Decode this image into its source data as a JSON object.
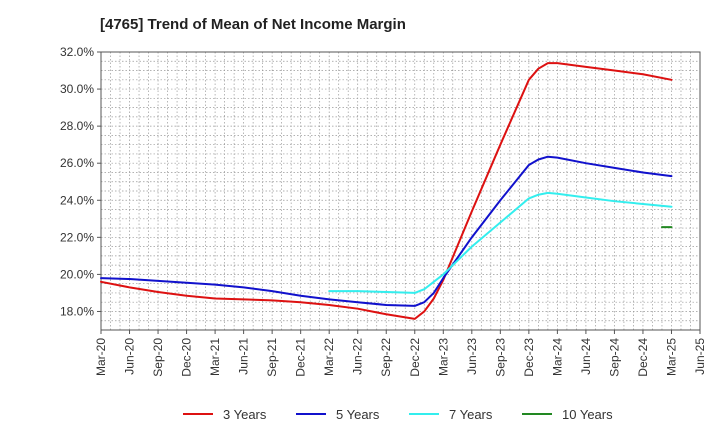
{
  "chart_data": {
    "type": "line",
    "title": "[4765]  Trend of Mean of Net Income Margin",
    "xlabel": "",
    "ylabel": "",
    "x_ticks": [
      "Mar-20",
      "Jun-20",
      "Sep-20",
      "Dec-20",
      "Mar-21",
      "Jun-21",
      "Sep-21",
      "Dec-21",
      "Mar-22",
      "Jun-22",
      "Sep-22",
      "Dec-22",
      "Mar-23",
      "Jun-23",
      "Sep-23",
      "Dec-23",
      "Mar-24",
      "Jun-24",
      "Sep-24",
      "Dec-24",
      "Mar-25",
      "Jun-25"
    ],
    "y_ticks": [
      "18.0%",
      "20.0%",
      "22.0%",
      "24.0%",
      "26.0%",
      "28.0%",
      "30.0%",
      "32.0%"
    ],
    "ylim": [
      17.0,
      32.0
    ],
    "y_unit": "%",
    "grid": true,
    "legend_position": "bottom",
    "series": [
      {
        "name": "3 Years",
        "color": "#dd1111",
        "points": [
          [
            "Mar-20",
            19.6
          ],
          [
            "Jun-20",
            19.3
          ],
          [
            "Sep-20",
            19.05
          ],
          [
            "Dec-20",
            18.85
          ],
          [
            "Mar-21",
            18.7
          ],
          [
            "Jun-21",
            18.65
          ],
          [
            "Sep-21",
            18.6
          ],
          [
            "Dec-21",
            18.5
          ],
          [
            "Mar-22",
            18.35
          ],
          [
            "Jun-22",
            18.15
          ],
          [
            "Sep-22",
            17.85
          ],
          [
            "Dec-22",
            17.6
          ],
          [
            "Jan-23",
            18.0
          ],
          [
            "Feb-23",
            18.7
          ],
          [
            "Mar-23",
            19.7
          ],
          [
            "Jun-23",
            23.4
          ],
          [
            "Sep-23",
            27.0
          ],
          [
            "Dec-23",
            30.5
          ],
          [
            "Jan-24",
            31.1
          ],
          [
            "Feb-24",
            31.4
          ],
          [
            "Mar-24",
            31.4
          ],
          [
            "Jun-24",
            31.2
          ],
          [
            "Sep-24",
            31.0
          ],
          [
            "Dec-24",
            30.8
          ],
          [
            "Mar-25",
            30.5
          ]
        ]
      },
      {
        "name": "5 Years",
        "color": "#1111cc",
        "points": [
          [
            "Mar-20",
            19.8
          ],
          [
            "Jun-20",
            19.75
          ],
          [
            "Sep-20",
            19.65
          ],
          [
            "Dec-20",
            19.55
          ],
          [
            "Mar-21",
            19.45
          ],
          [
            "Jun-21",
            19.3
          ],
          [
            "Sep-21",
            19.1
          ],
          [
            "Dec-21",
            18.85
          ],
          [
            "Mar-22",
            18.65
          ],
          [
            "Jun-22",
            18.5
          ],
          [
            "Sep-22",
            18.35
          ],
          [
            "Dec-22",
            18.3
          ],
          [
            "Jan-23",
            18.5
          ],
          [
            "Feb-23",
            19.0
          ],
          [
            "Mar-23",
            19.8
          ],
          [
            "Jun-23",
            22.0
          ],
          [
            "Sep-23",
            24.0
          ],
          [
            "Dec-23",
            25.9
          ],
          [
            "Jan-24",
            26.2
          ],
          [
            "Feb-24",
            26.35
          ],
          [
            "Mar-24",
            26.3
          ],
          [
            "Jun-24",
            26.0
          ],
          [
            "Sep-24",
            25.75
          ],
          [
            "Dec-24",
            25.5
          ],
          [
            "Mar-25",
            25.3
          ]
        ]
      },
      {
        "name": "7 Years",
        "color": "#33eeee",
        "points": [
          [
            "Mar-22",
            19.1
          ],
          [
            "Jun-22",
            19.1
          ],
          [
            "Sep-22",
            19.05
          ],
          [
            "Dec-22",
            19.0
          ],
          [
            "Jan-23",
            19.2
          ],
          [
            "Feb-23",
            19.6
          ],
          [
            "Mar-23",
            20.0
          ],
          [
            "Jun-23",
            21.5
          ],
          [
            "Sep-23",
            22.8
          ],
          [
            "Dec-23",
            24.1
          ],
          [
            "Jan-24",
            24.3
          ],
          [
            "Feb-24",
            24.4
          ],
          [
            "Mar-24",
            24.35
          ],
          [
            "Jun-24",
            24.15
          ],
          [
            "Sep-24",
            23.95
          ],
          [
            "Dec-24",
            23.8
          ],
          [
            "Mar-25",
            23.65
          ]
        ]
      },
      {
        "name": "10 Years",
        "color": "#228822",
        "points": [
          [
            "Feb-25",
            22.55
          ],
          [
            "Mar-25",
            22.55
          ]
        ]
      }
    ]
  }
}
